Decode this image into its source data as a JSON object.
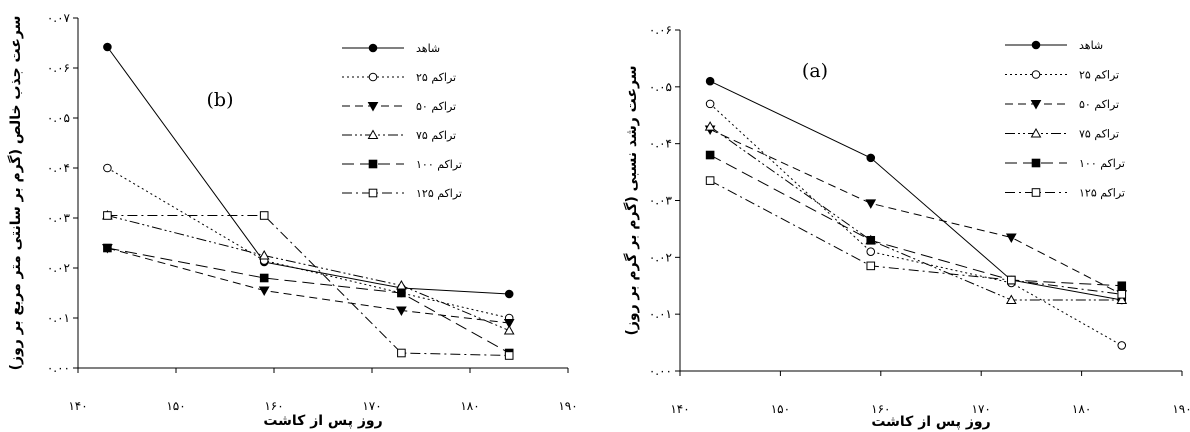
{
  "chart_data": [
    {
      "type": "line",
      "panel_label": "(b)",
      "ylabel": "سرعت جذب خالص (گرم بر سانتی متر مربع بر روز)",
      "xlabel": "روز پس از کاشت",
      "xlim": [
        140,
        190
      ],
      "ylim": [
        0,
        0.07
      ],
      "x_ticks": [
        "۱۴۰",
        "۱۵۰",
        "۱۶۰",
        "۱۷۰",
        "۱۸۰",
        "۱۹۰"
      ],
      "y_ticks": [
        "۰.۰۰",
        "۰.۰۱",
        "۰.۰۲",
        "۰.۰۳",
        "۰.۰۴",
        "۰.۰۵",
        "۰.۰۶",
        "۰.۰۷"
      ],
      "x": [
        143,
        159,
        173,
        184
      ],
      "legend_position": "top-right",
      "series": [
        {
          "name": "شاهد",
          "marker": "filled-circle",
          "dash": "solid",
          "values": [
            0.0642,
            0.0212,
            0.016,
            0.0148
          ]
        },
        {
          "name": "تراکم ۲۵",
          "marker": "open-circle",
          "dash": "dotted",
          "values": [
            0.04,
            0.0215,
            0.015,
            0.01
          ]
        },
        {
          "name": "تراکم ۵۰",
          "marker": "filled-triangle",
          "dash": "dashed",
          "values": [
            0.024,
            0.0155,
            0.0115,
            0.009
          ]
        },
        {
          "name": "تراکم ۷۵",
          "marker": "open-triangle",
          "dash": "dash-dot-dot",
          "values": [
            0.0305,
            0.0225,
            0.0165,
            0.0075
          ]
        },
        {
          "name": "تراکم ۱۰۰",
          "marker": "filled-square",
          "dash": "long-dash",
          "values": [
            0.024,
            0.018,
            0.015,
            0.003
          ]
        },
        {
          "name": "تراکم ۱۲۵",
          "marker": "open-square",
          "dash": "dash-dot",
          "values": [
            0.0305,
            0.0305,
            0.003,
            0.0025
          ]
        }
      ]
    },
    {
      "type": "line",
      "panel_label": "(a)",
      "ylabel": "سرعت رشد نسبی (گرم بر گرم بر روز)",
      "xlabel": "روز پس از کاشت",
      "xlim": [
        140,
        190
      ],
      "ylim": [
        0,
        0.06
      ],
      "x_ticks": [
        "۱۴۰",
        "۱۵۰",
        "۱۶۰",
        "۱۷۰",
        "۱۸۰",
        "۱۹۰"
      ],
      "y_ticks": [
        "۰.۰۰",
        "۰.۰۱",
        "۰.۰۲",
        "۰.۰۳",
        "۰.۰۴",
        "۰.۰۵",
        "۰.۰۶"
      ],
      "x": [
        143,
        159,
        173,
        184
      ],
      "legend_position": "top-right",
      "series": [
        {
          "name": "شاهد",
          "marker": "filled-circle",
          "dash": "solid",
          "values": [
            0.051,
            0.0375,
            0.016,
            0.0125
          ]
        },
        {
          "name": "تراکم ۲۵",
          "marker": "open-circle",
          "dash": "dotted",
          "values": [
            0.047,
            0.021,
            0.0155,
            0.0045
          ]
        },
        {
          "name": "تراکم ۵۰",
          "marker": "filled-triangle",
          "dash": "dashed",
          "values": [
            0.0425,
            0.0295,
            0.0235,
            0.0135
          ]
        },
        {
          "name": "تراکم ۷۵",
          "marker": "open-triangle",
          "dash": "dash-dot-dot",
          "values": [
            0.043,
            0.023,
            0.0125,
            0.0125
          ]
        },
        {
          "name": "تراکم ۱۰۰",
          "marker": "filled-square",
          "dash": "long-dash",
          "values": [
            0.038,
            0.023,
            0.016,
            0.015
          ]
        },
        {
          "name": "تراکم ۱۲۵",
          "marker": "open-square",
          "dash": "dash-dot",
          "values": [
            0.0335,
            0.0185,
            0.016,
            0.0135
          ]
        }
      ]
    }
  ]
}
